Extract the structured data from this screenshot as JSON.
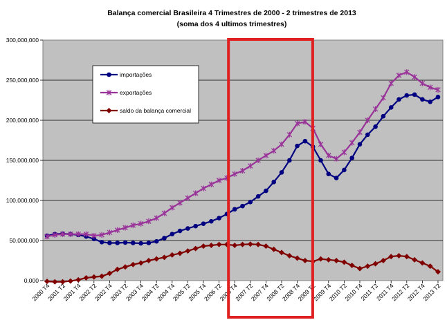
{
  "chart_data": {
    "type": "line",
    "title": "Balança comercial Brasileira 4 Trimestres de  2000 - 2 trimestres de 2013",
    "subtitle": "(soma dos 4 ultimos trimestres)",
    "xlabel": "",
    "ylabel": "",
    "ylim": [
      0,
      300000000
    ],
    "yticks": [
      0,
      50000000,
      100000000,
      150000000,
      200000000,
      250000000,
      300000000
    ],
    "ytick_labels": [
      "0,000",
      "50,000,000",
      "100,000,000",
      "150,000,000",
      "200,000,000",
      "250,000,000",
      "300,000,000"
    ],
    "x": [
      "2000 T4",
      "2001 T1",
      "2001 T2",
      "2001 T3",
      "2001 T4",
      "2002 T1",
      "2002 T2",
      "2002 T3",
      "2002 T4",
      "2003 T1",
      "2003 T2",
      "2003 T3",
      "2003 T4",
      "2004 T1",
      "2004 T2",
      "2004 T3",
      "2004 T4",
      "2005 T1",
      "2005 T2",
      "2005 T3",
      "2005 T4",
      "2006 T1",
      "2006 T2",
      "2006 T3",
      "2006 T4",
      "2007 T1",
      "2007 T2",
      "2007 T3",
      "2007 T4",
      "2008 T1",
      "2008 T2",
      "2008 T3",
      "2008 T4",
      "2009 T1",
      "2009 T2",
      "2009 T3",
      "2009 T4",
      "2010 T1",
      "2010 T2",
      "2010 T3",
      "2010 T4",
      "2011 T1",
      "2011 T2",
      "2011 T3",
      "2011 T4",
      "2012 T1",
      "2012 T2",
      "2012 T3",
      "2012 T4",
      "2013 T1",
      "2013 T2"
    ],
    "x_tick_labels": [
      "2000 T4",
      "2001 T2",
      "2001 T4",
      "2002 T2",
      "2002 T4",
      "2003 T2",
      "2003 T4",
      "2004 T2",
      "2004 T4",
      "2005 T2",
      "2005 T4",
      "2006 T2",
      "2006 T4",
      "2007 T2",
      "2007 T4",
      "2008 T2",
      "2008 T4",
      "2009 T2",
      "2009 T4",
      "2010 T2",
      "2010 T4",
      "2011 T2",
      "2011 T4",
      "2012 T2",
      "2012 T4",
      "2013 T2"
    ],
    "grid": true,
    "legend_position": "top-left",
    "series": [
      {
        "name": "importações",
        "color": "#000080",
        "marker": "circle",
        "values": [
          56000000,
          58000000,
          58500000,
          58000000,
          57000000,
          55000000,
          52000000,
          48000000,
          47000000,
          47000000,
          47500000,
          47000000,
          46500000,
          47000000,
          49000000,
          53000000,
          58000000,
          62000000,
          65000000,
          68000000,
          71000000,
          74000000,
          78000000,
          83000000,
          89000000,
          93000000,
          98000000,
          105000000,
          112000000,
          123000000,
          135000000,
          150000000,
          168000000,
          174000000,
          167000000,
          150000000,
          133000000,
          128000000,
          138000000,
          153000000,
          170000000,
          182000000,
          192000000,
          205000000,
          216000000,
          226000000,
          231000000,
          232000000,
          226000000,
          223000000,
          229000000
        ]
      },
      {
        "name": "exportações",
        "color": "#993399",
        "marker": "star",
        "values": [
          55000000,
          57000000,
          58000000,
          58000000,
          58000000,
          58000000,
          56000000,
          57000000,
          60000000,
          63000000,
          66000000,
          69000000,
          71000000,
          74000000,
          78000000,
          84000000,
          91000000,
          97000000,
          103000000,
          109000000,
          115000000,
          120000000,
          125000000,
          128000000,
          133000000,
          137000000,
          143000000,
          150000000,
          156000000,
          162000000,
          170000000,
          182000000,
          196000000,
          198000000,
          190000000,
          170000000,
          156000000,
          152000000,
          160000000,
          172000000,
          185000000,
          200000000,
          214000000,
          228000000,
          246000000,
          256000000,
          260000000,
          254000000,
          246000000,
          241000000,
          238000000
        ]
      },
      {
        "name": "saldo da balança comercial",
        "color": "#800000",
        "marker": "diamond",
        "values": [
          -1000000,
          -1500000,
          -1500000,
          -500000,
          1000000,
          3500000,
          4500000,
          5500000,
          9000000,
          14000000,
          17000000,
          20000000,
          22000000,
          25000000,
          27000000,
          29000000,
          32000000,
          34000000,
          37000000,
          40000000,
          43000000,
          44000000,
          45000000,
          45000000,
          44000000,
          45000000,
          45500000,
          45000000,
          43000000,
          39000000,
          35000000,
          31000000,
          28000000,
          25000000,
          24000000,
          27000000,
          26000000,
          25000000,
          23000000,
          19000000,
          15000000,
          18000000,
          21000000,
          25000000,
          30000000,
          31000000,
          30000000,
          26000000,
          22000000,
          18000000,
          11000000
        ]
      }
    ],
    "annotation": {
      "type": "highlight-rectangle",
      "color": "#e02020",
      "from": "2006 T4",
      "to": "2009 T1"
    }
  }
}
